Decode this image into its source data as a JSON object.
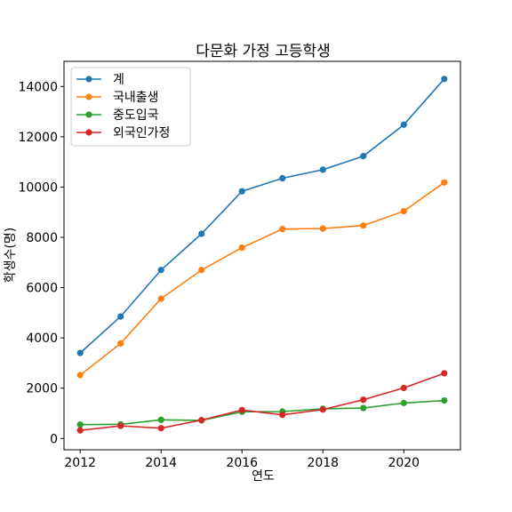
{
  "chart_data": {
    "type": "line",
    "title": "다문화 가정 고등학생",
    "xlabel": "연도",
    "ylabel": "학생수(명)",
    "xlim": [
      2011.6,
      2021.4
    ],
    "ylim": [
      -450,
      15000
    ],
    "xticks": [
      2012,
      2014,
      2016,
      2018,
      2020
    ],
    "yticks": [
      0,
      2000,
      4000,
      6000,
      8000,
      10000,
      12000,
      14000
    ],
    "legend_position": "top-left",
    "x": [
      2012,
      2013,
      2014,
      2015,
      2016,
      2017,
      2018,
      2019,
      2020,
      2021
    ],
    "series": [
      {
        "name": "계",
        "color": "#1f77b4",
        "values": [
          3400,
          4850,
          6700,
          8140,
          9830,
          10350,
          10690,
          11230,
          12480,
          14300
        ]
      },
      {
        "name": "국내출생",
        "color": "#ff7f0e",
        "values": [
          2520,
          3780,
          5560,
          6700,
          7590,
          8330,
          8350,
          8470,
          9040,
          10180
        ]
      },
      {
        "name": "중도입국",
        "color": "#2ca02c",
        "values": [
          550,
          560,
          740,
          720,
          1060,
          1070,
          1180,
          1210,
          1410,
          1510
        ]
      },
      {
        "name": "외국인가정",
        "color": "#d62728",
        "values": [
          320,
          500,
          410,
          730,
          1130,
          940,
          1150,
          1540,
          2010,
          2590
        ]
      }
    ]
  }
}
